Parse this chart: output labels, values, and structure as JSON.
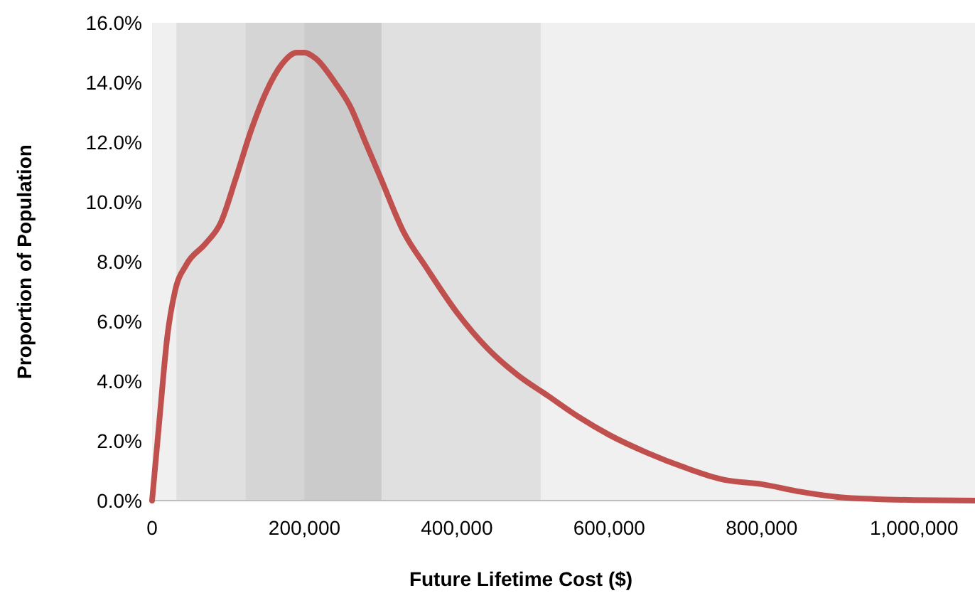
{
  "chart_data": {
    "type": "line",
    "xlabel": "Future Lifetime Cost ($)",
    "ylabel": "Proportion of Population",
    "x": [
      0,
      10000,
      20000,
      30000,
      45000,
      70000,
      90000,
      110000,
      130000,
      150000,
      170000,
      190000,
      200000,
      215000,
      240000,
      260000,
      280000,
      300000,
      330000,
      360000,
      400000,
      440000,
      480000,
      520000,
      560000,
      600000,
      650000,
      700000,
      750000,
      800000,
      850000,
      900000,
      950000,
      1000000,
      1080000
    ],
    "series": [
      {
        "color": "#c0504d",
        "values": [
          0,
          2.8,
          5.5,
          7.0,
          7.9,
          8.6,
          9.3,
          10.8,
          12.4,
          13.7,
          14.6,
          15.0,
          15.0,
          14.8,
          14.0,
          13.2,
          12.0,
          10.8,
          9.0,
          7.8,
          6.3,
          5.1,
          4.2,
          3.5,
          2.8,
          2.2,
          1.6,
          1.1,
          0.7,
          0.55,
          0.3,
          0.12,
          0.05,
          0.02,
          0
        ]
      }
    ],
    "xlim": [
      0,
      1080000
    ],
    "ylim": [
      0,
      16
    ],
    "xticks": [
      {
        "value": 0,
        "label": "0"
      },
      {
        "value": 200000,
        "label": "200,000"
      },
      {
        "value": 400000,
        "label": "400,000"
      },
      {
        "value": 600000,
        "label": "600,000"
      },
      {
        "value": 800000,
        "label": "800,000"
      },
      {
        "value": 1000000,
        "label": "1,000,000"
      }
    ],
    "yticks": [
      {
        "value": 0,
        "label": "0.0%"
      },
      {
        "value": 2,
        "label": "2.0%"
      },
      {
        "value": 4,
        "label": "4.0%"
      },
      {
        "value": 6,
        "label": "6.0%"
      },
      {
        "value": 8,
        "label": "8.0%"
      },
      {
        "value": 10,
        "label": "10.0%"
      },
      {
        "value": 12,
        "label": "12.0%"
      },
      {
        "value": 14,
        "label": "14.0%"
      },
      {
        "value": 16,
        "label": "16.0%"
      }
    ],
    "bands": [
      {
        "axis": "x",
        "from": 0,
        "to": 1080000,
        "color": "#f0f0f0"
      },
      {
        "axis": "x",
        "from": 32000,
        "to": 510000,
        "color": "#e0e0e0"
      },
      {
        "axis": "x",
        "from": 123000,
        "to": 301000,
        "color": "#d5d5d5"
      },
      {
        "axis": "x",
        "from": 200000,
        "to": 301000,
        "color": "#cbcbcb"
      }
    ],
    "grid": false,
    "marker": "none",
    "line_style": "solid"
  }
}
